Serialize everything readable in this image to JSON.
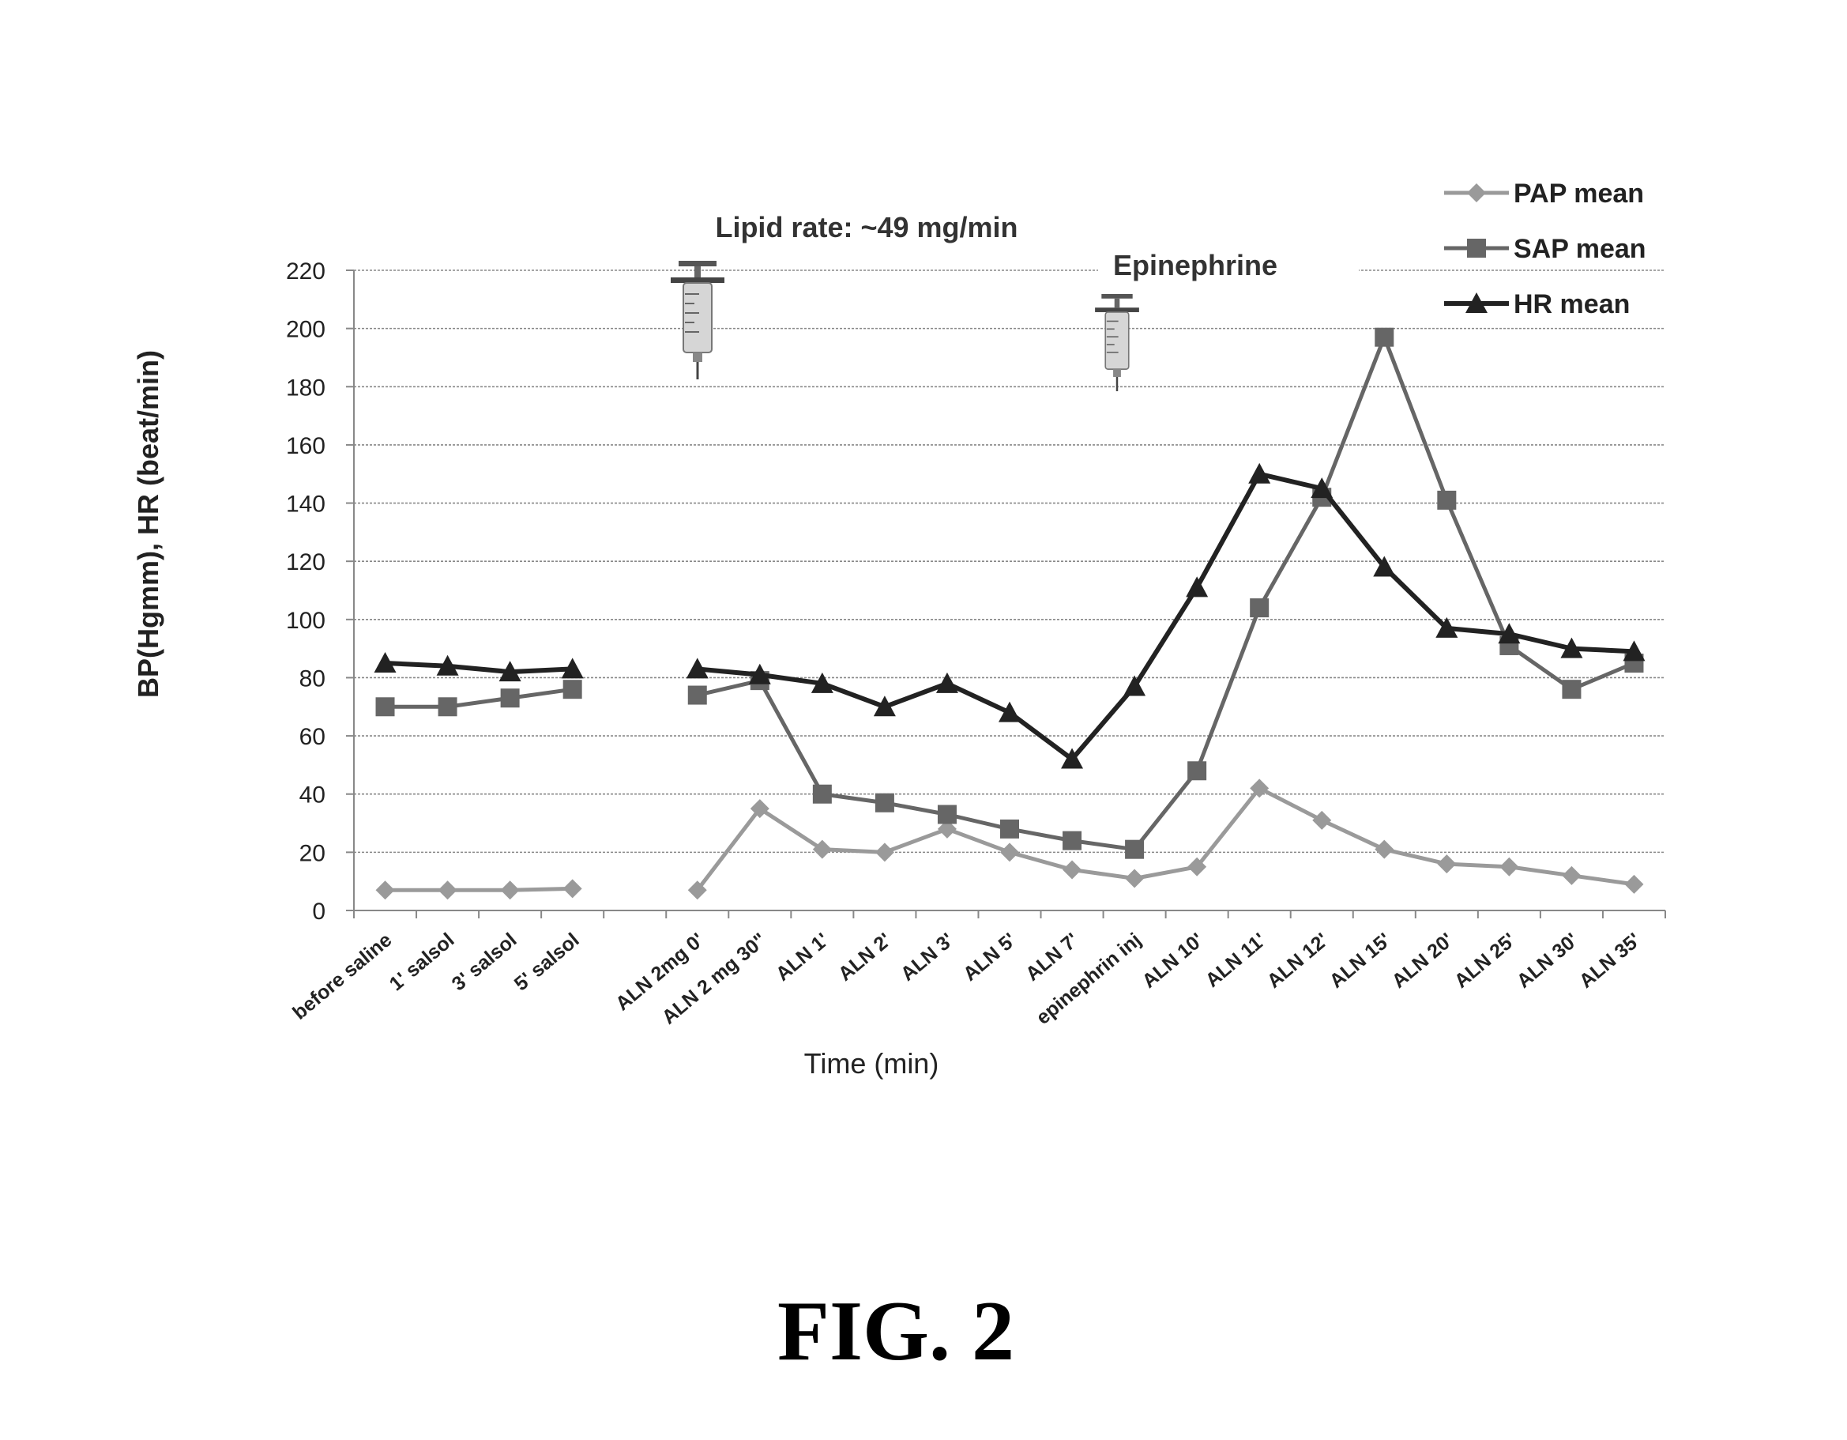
{
  "chart_data": {
    "type": "line",
    "xlabel": "Time (min)",
    "ylabel": "BP(Hgmm),   HR (beat/min)",
    "ylim": [
      0,
      220
    ],
    "yticks": [
      0,
      20,
      40,
      60,
      80,
      100,
      120,
      140,
      160,
      180,
      200,
      220
    ],
    "grid": true,
    "legend_position": "top-right",
    "categories": [
      "before saline",
      "1' salsol",
      "3' salsol",
      "5' salsol",
      "",
      "ALN 2mg 0'",
      "ALN 2 mg 30\"",
      "ALN 1'",
      "ALN 2'",
      "ALN 3'",
      "ALN 5'",
      "ALN 7'",
      "epinephrin inj",
      "ALN 10'",
      "ALN 11'",
      "ALN 12'",
      "ALN 15'",
      "ALN 20'",
      "ALN 25'",
      "ALN 30'",
      "ALN 35'"
    ],
    "series": [
      {
        "name": "PAP mean",
        "color": "#9a9a9a",
        "marker": "diamond",
        "values": [
          7,
          7,
          7,
          7.5,
          null,
          7,
          35,
          21,
          20,
          28,
          20,
          14,
          11,
          15,
          42,
          31,
          21,
          16,
          15,
          12,
          9
        ]
      },
      {
        "name": "SAP mean",
        "color": "#666666",
        "marker": "square",
        "values": [
          70,
          70,
          73,
          76,
          null,
          74,
          79,
          40,
          37,
          33,
          28,
          24,
          21,
          48,
          104,
          142,
          197,
          141,
          91,
          76,
          85
        ]
      },
      {
        "name": "HR mean",
        "color": "#222222",
        "marker": "triangle",
        "values": [
          85,
          84,
          82,
          83,
          null,
          83,
          81,
          78,
          70,
          78,
          68,
          52,
          77,
          111,
          150,
          145,
          118,
          97,
          95,
          90,
          89
        ]
      }
    ],
    "annotations": [
      "Lipid rate: ~49 mg/min",
      "Epinephrine"
    ]
  },
  "icons": [
    "syringe-icon",
    "syringe-icon"
  ],
  "figure_label": "FIG. 2"
}
